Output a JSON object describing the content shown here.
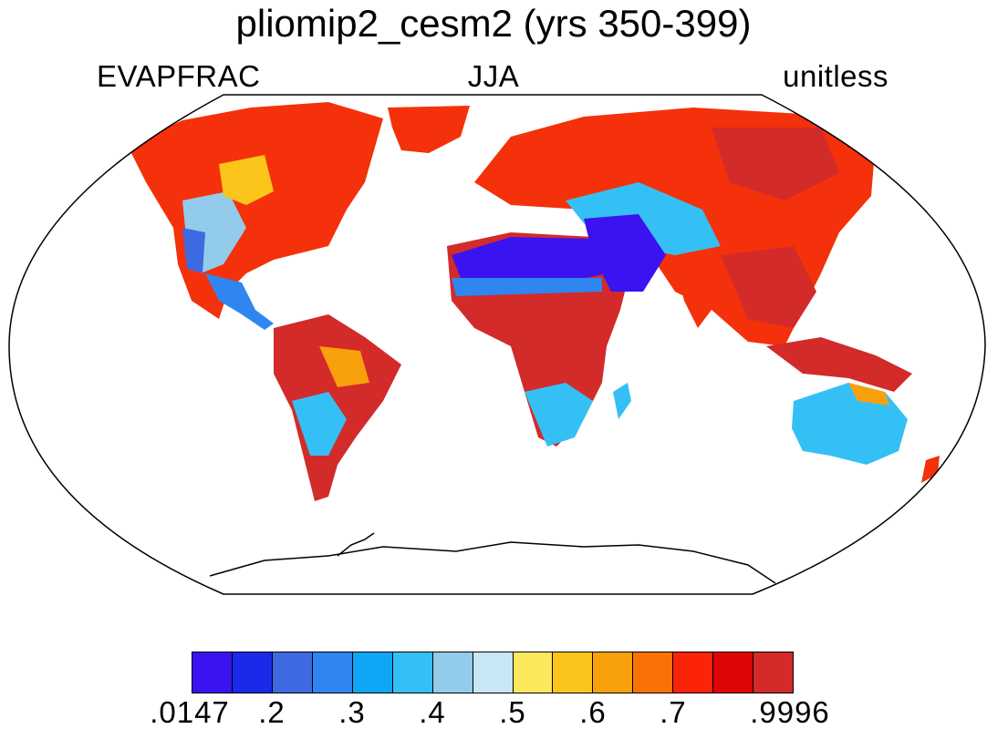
{
  "header": {
    "title": "pliomip2_cesm2 (yrs 350-399)",
    "variable": "EVAPFRAC",
    "season": "JJA",
    "units": "unitless"
  },
  "colorbar": {
    "colors": [
      "#3a13f0",
      "#1a2ae8",
      "#3d6ae0",
      "#2f86f0",
      "#0fa6f5",
      "#35c0f5",
      "#93cbea",
      "#c8e6f5",
      "#fde85b",
      "#fcc51b",
      "#f9a00d",
      "#f97208",
      "#fb2308",
      "#dd0506",
      "#d32a2a"
    ],
    "tick_labels": [
      ".0147",
      ".2",
      ".3",
      ".4",
      ".5",
      ".6",
      ".7",
      ".9996"
    ]
  }
}
